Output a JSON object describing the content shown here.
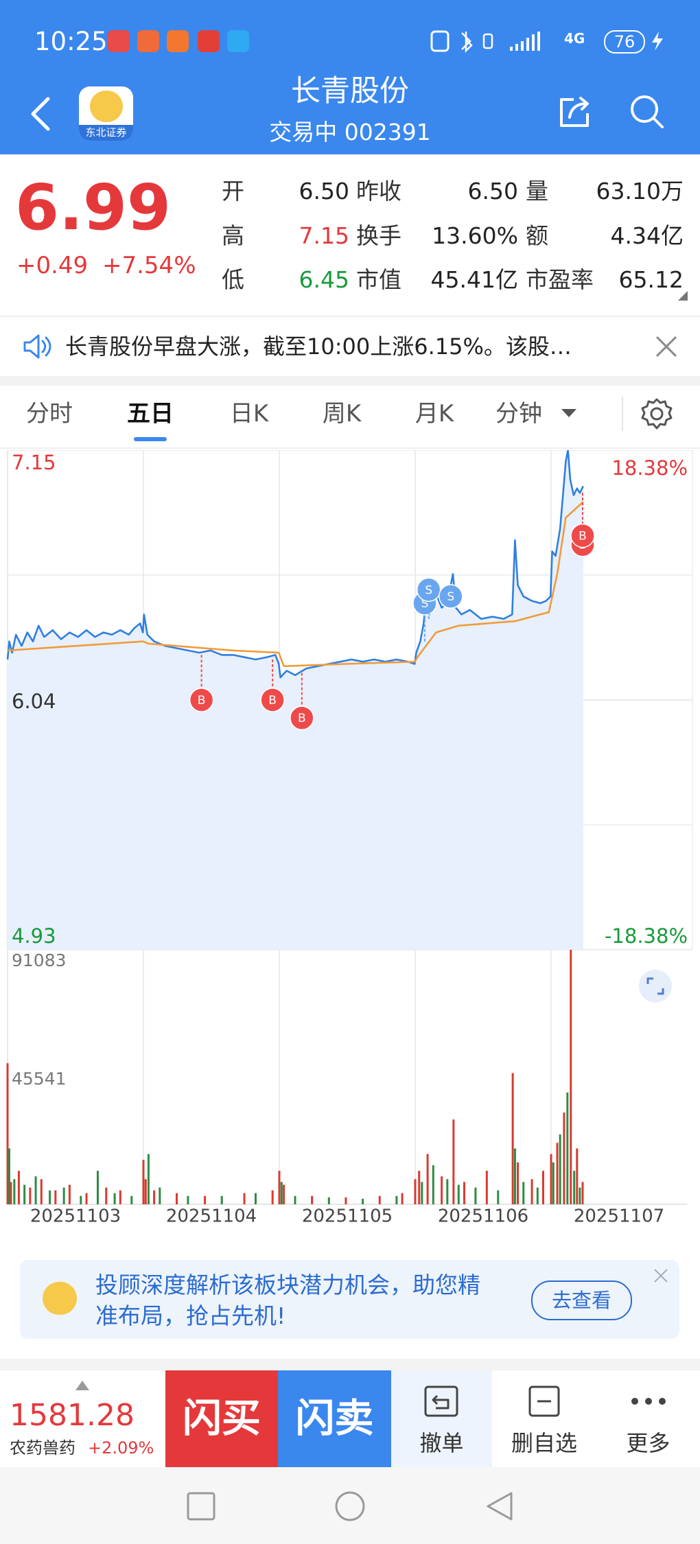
{
  "status_bar": {
    "time": "10:25",
    "network": "4G",
    "battery": "76"
  },
  "header": {
    "title": "长青股份",
    "subtitle": "交易中 002391",
    "logo_text": "东北证券"
  },
  "quote": {
    "price": "6.99",
    "change": "+0.49",
    "change_pct": "+7.54%",
    "rows": [
      [
        {
          "label": "开",
          "value": "6.50"
        },
        {
          "label": "昨收",
          "value": "6.50"
        },
        {
          "label": "量",
          "value": "63.10万"
        }
      ],
      [
        {
          "label": "高",
          "value": "7.15",
          "color": "#e5383b"
        },
        {
          "label": "换手",
          "value": "13.60%"
        },
        {
          "label": "额",
          "value": "4.34亿"
        }
      ],
      [
        {
          "label": "低",
          "value": "6.45",
          "color": "#1a9a3a"
        },
        {
          "label": "市值",
          "value": "45.41亿"
        },
        {
          "label": "市盈率",
          "value": "65.12"
        }
      ]
    ]
  },
  "news": "长青股份早盘大涨，截至10:00上涨6.15%。该股…",
  "tabs": [
    "分时",
    "五日",
    "日K",
    "周K",
    "月K",
    "分钟"
  ],
  "active_tab": 1,
  "chart_data": {
    "type": "line",
    "xlim": [
      0,
      1205
    ],
    "xticks": [
      {
        "value": 120.5,
        "label": "20251103"
      },
      {
        "value": 361.5,
        "label": "20251104"
      },
      {
        "value": 602.5,
        "label": "20251105"
      },
      {
        "value": 843.5,
        "label": "20251106"
      },
      {
        "value": 1084.5,
        "label": "20251107"
      }
    ],
    "day_boundaries": [
      241,
      482,
      723,
      964
    ],
    "ylim": [
      4.93,
      7.15
    ],
    "yticks": [
      7.15,
      6.04,
      4.93
    ],
    "ytick_colors": [
      "#e5383b",
      "#333333",
      "#1a9a3a"
    ],
    "grid_lines": [
      6.595,
      5.485
    ],
    "y2lim": [
      -18.38,
      18.38
    ],
    "y2ticks": [
      {
        "value": 18.38,
        "label": "18.38%"
      },
      {
        "value": -18.38,
        "label": "-18.38%"
      }
    ],
    "y2tick_colors": [
      "#e5383b",
      "#1a9a3a"
    ],
    "area_color": "#e7f0fc",
    "series": [
      {
        "color": "#2f7fe0",
        "x": [
          0,
          3,
          8,
          15,
          25,
          35,
          45,
          55,
          65,
          80,
          95,
          110,
          125,
          140,
          155,
          170,
          185,
          200,
          215,
          225,
          235,
          240,
          242,
          248,
          260,
          280,
          300,
          320,
          340,
          360,
          380,
          400,
          420,
          440,
          460,
          475,
          481,
          484,
          495,
          510,
          530,
          550,
          570,
          590,
          610,
          630,
          650,
          670,
          690,
          710,
          722,
          725,
          732,
          738,
          742,
          748,
          755,
          762,
          770,
          780,
          790,
          795,
          805,
          820,
          840,
          860,
          880,
          895,
          900,
          905,
          915,
          930,
          945,
          955,
          963,
          966,
          972,
          980,
          985,
          990,
          994,
          998,
          1004,
          1010,
          1015,
          1021
        ],
        "values": [
          6.22,
          6.3,
          6.25,
          6.33,
          6.28,
          6.34,
          6.3,
          6.37,
          6.32,
          6.35,
          6.31,
          6.34,
          6.32,
          6.35,
          6.32,
          6.34,
          6.33,
          6.35,
          6.33,
          6.36,
          6.38,
          6.34,
          6.42,
          6.33,
          6.3,
          6.28,
          6.27,
          6.26,
          6.25,
          6.26,
          6.24,
          6.24,
          6.23,
          6.22,
          6.23,
          6.24,
          6.2,
          6.14,
          6.17,
          6.15,
          6.18,
          6.19,
          6.2,
          6.21,
          6.22,
          6.21,
          6.22,
          6.21,
          6.22,
          6.21,
          6.2,
          6.25,
          6.3,
          6.38,
          6.48,
          6.42,
          6.55,
          6.5,
          6.45,
          6.47,
          6.6,
          6.45,
          6.42,
          6.44,
          6.4,
          6.41,
          6.4,
          6.42,
          6.75,
          6.55,
          6.5,
          6.48,
          6.47,
          6.48,
          6.5,
          6.7,
          6.68,
          6.8,
          6.95,
          7.1,
          7.15,
          7.02,
          6.95,
          6.98,
          6.96,
          6.99
        ]
      },
      {
        "color": "#f29b38",
        "x": [
          0,
          120,
          240,
          250,
          400,
          481,
          490,
          600,
          722,
          730,
          760,
          800,
          900,
          960,
          975,
          990,
          1021
        ],
        "values": [
          6.26,
          6.28,
          6.3,
          6.29,
          6.26,
          6.25,
          6.19,
          6.2,
          6.21,
          6.24,
          6.34,
          6.37,
          6.39,
          6.43,
          6.6,
          6.85,
          6.92
        ]
      }
    ],
    "trades": [
      {
        "label": "B",
        "x": 344,
        "price": 6.04,
        "from": 6.24
      },
      {
        "label": "B",
        "x": 470,
        "price": 6.04,
        "from": 6.22
      },
      {
        "label": "B",
        "x": 522,
        "price": 5.96,
        "from": 6.16
      },
      {
        "label": "S",
        "x": 740,
        "price": 6.47,
        "from": 6.3
      },
      {
        "label": "S",
        "x": 747,
        "price": 6.53,
        "from": 6.4
      },
      {
        "label": "S",
        "x": 786,
        "price": 6.5,
        "from": 6.45
      },
      {
        "label": "B",
        "x": 1020,
        "price": 6.73,
        "from": 6.96
      },
      {
        "label": "B",
        "x": 1020,
        "price": 6.77,
        "from": 6.96
      }
    ],
    "trade_colors": {
      "B": "#ef4a4a",
      "S": "#6aa6ef"
    },
    "volume": {
      "ylim": [
        0,
        91083
      ],
      "yticks": [
        91083,
        45541
      ],
      "up": {
        "color": "#d93a30",
        "x": [
          0,
          6,
          20,
          40,
          60,
          85,
          110,
          140,
          175,
          200,
          241,
          245,
          260,
          300,
          350,
          420,
          470,
          482,
          490,
          540,
          600,
          660,
          700,
          723,
          730,
          745,
          770,
          791,
          810,
          850,
          896,
          905,
          930,
          950,
          964,
          975,
          987,
          999,
          1010,
          1020
        ],
        "values": [
          50484,
          8000,
          12000,
          6000,
          9000,
          5000,
          7000,
          4000,
          6000,
          5000,
          15890,
          9000,
          5000,
          4000,
          3000,
          4000,
          5000,
          12000,
          7000,
          3000,
          2500,
          3000,
          4000,
          9000,
          12000,
          18000,
          10000,
          30360,
          8000,
          12000,
          46950,
          15000,
          9000,
          12000,
          18000,
          22000,
          32830,
          91083,
          20000,
          8000
        ]
      },
      "down": {
        "color": "#2e8b45",
        "x": [
          3,
          12,
          30,
          50,
          75,
          100,
          130,
          160,
          190,
          220,
          250,
          270,
          320,
          380,
          440,
          486,
          510,
          570,
          630,
          690,
          735,
          755,
          780,
          800,
          830,
          870,
          900,
          915,
          940,
          968,
          980,
          993,
          1005,
          1015
        ],
        "values": [
          20000,
          9000,
          7000,
          10000,
          5000,
          6000,
          3000,
          12000,
          4000,
          3000,
          18000,
          6000,
          3000,
          3000,
          4000,
          8000,
          3000,
          2500,
          2000,
          3000,
          8000,
          14000,
          9000,
          7000,
          6000,
          5000,
          20000,
          8000,
          6000,
          15000,
          25000,
          40000,
          12000,
          6000
        ]
      }
    }
  },
  "banner": {
    "lines": [
      "投顾深度解析该板块潜力机会，助您精",
      "准布局，抢占先机!"
    ],
    "button": "去查看"
  },
  "footer": {
    "index_value": "1581.28",
    "index_name": "农药兽药",
    "index_change": "+2.09%",
    "buttons": [
      "闪买",
      "闪卖",
      "撤单",
      "删自选",
      "更多"
    ]
  }
}
